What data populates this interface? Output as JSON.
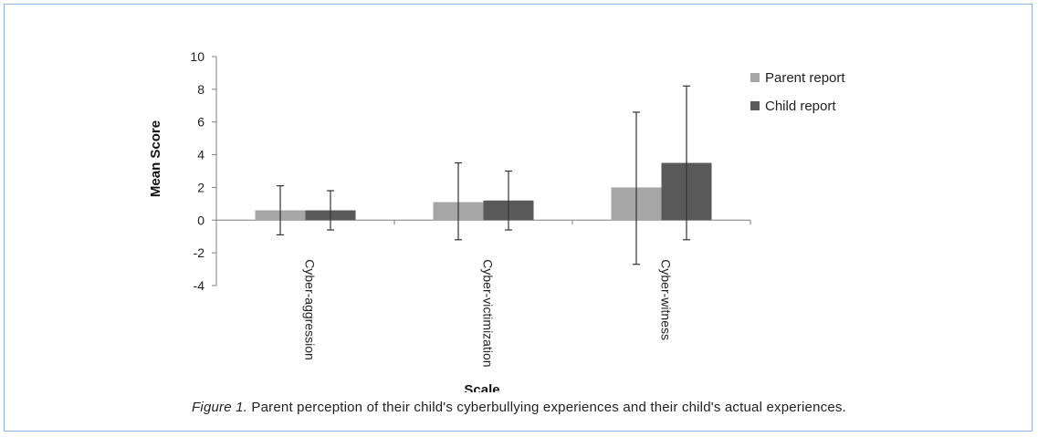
{
  "chart_data": {
    "type": "bar",
    "title": "",
    "xlabel": "Scale",
    "ylabel": "Mean Score",
    "ylim": [
      -4,
      10
    ],
    "yticks": [
      -4,
      -2,
      0,
      2,
      4,
      6,
      8,
      10
    ],
    "grid": false,
    "legend_position": "top-right",
    "categories": [
      "Cyber-aggression",
      "Cyber-victimization",
      "Cyber-witness"
    ],
    "series": [
      {
        "name": "Parent report",
        "color": "#a6a6a6",
        "values": [
          0.6,
          1.1,
          2.0
        ],
        "error_low": [
          -0.9,
          -1.2,
          -2.7
        ],
        "error_high": [
          2.1,
          3.5,
          6.6
        ]
      },
      {
        "name": "Child report",
        "color": "#595959",
        "values": [
          0.6,
          1.2,
          3.5
        ],
        "error_low": [
          -0.6,
          -0.6,
          -1.2
        ],
        "error_high": [
          1.8,
          3.0,
          8.2
        ]
      }
    ]
  },
  "caption": {
    "label": "Figure 1.",
    "text": " Parent perception of their child's cyberbullying experiences and their child's actual experiences."
  }
}
